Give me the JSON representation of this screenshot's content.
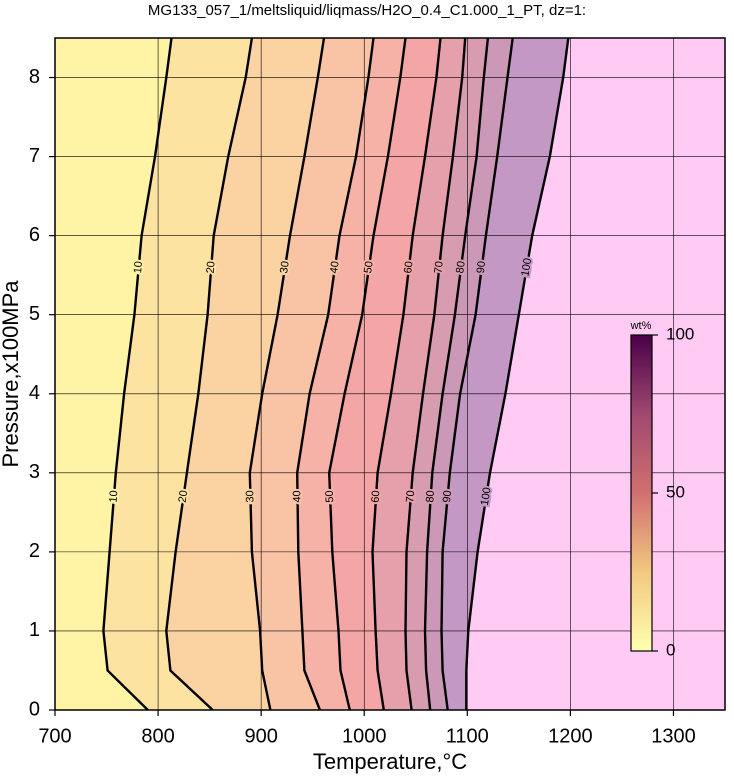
{
  "chart_data": {
    "type": "contour",
    "title": "MG133_057_1/meltsliquid/liqmass/H2O_0.4_C1.000_1_PT, dz=1:",
    "x_label": "Temperature,°C",
    "y_label": "Pressure,x100MPa",
    "xlim": [
      700,
      1350
    ],
    "ylim": [
      0,
      8.5
    ],
    "xticks": [
      700,
      800,
      900,
      1000,
      1100,
      1200,
      1300
    ],
    "yticks": [
      0,
      1,
      2,
      3,
      4,
      5,
      6,
      7,
      8
    ],
    "grid": true,
    "pressures": [
      0,
      0.5,
      1,
      2,
      3,
      4,
      5,
      6,
      7,
      8,
      8.5
    ],
    "label_pressures": [
      2.7,
      5.6
    ],
    "contours": [
      {
        "level": 10,
        "temperatures": [
          790,
          751,
          747,
          753,
          759,
          767,
          777,
          784,
          797,
          808,
          813
        ]
      },
      {
        "level": 20,
        "temperatures": [
          853,
          812,
          808,
          817,
          828,
          839,
          848,
          854,
          868,
          885,
          891
        ]
      },
      {
        "level": 30,
        "temperatures": [
          909,
          901,
          899,
          891,
          889,
          901,
          916,
          928,
          942,
          955,
          961
        ]
      },
      {
        "level": 40,
        "temperatures": [
          957,
          942,
          940,
          936,
          935,
          947,
          965,
          976,
          992,
          1004,
          1009
        ]
      },
      {
        "level": 50,
        "temperatures": [
          986,
          977,
          975,
          969,
          966,
          981,
          998,
          1009,
          1023,
          1035,
          1040
        ]
      },
      {
        "level": 60,
        "temperatures": [
          1019,
          1013,
          1011,
          1008,
          1013,
          1026,
          1038,
          1047,
          1059,
          1070,
          1074
        ]
      },
      {
        "level": 70,
        "temperatures": [
          1046,
          1041,
          1040,
          1041,
          1047,
          1057,
          1068,
          1076,
          1086,
          1095,
          1098
        ]
      },
      {
        "level": 80,
        "temperatures": [
          1064,
          1060,
          1059,
          1061,
          1066,
          1076,
          1088,
          1098,
          1109,
          1116,
          1120
        ]
      },
      {
        "level": 90,
        "temperatures": [
          1081,
          1076,
          1075,
          1076,
          1083,
          1093,
          1108,
          1118,
          1129,
          1139,
          1144
        ]
      },
      {
        "level": 100,
        "temperatures": [
          1099,
          1099,
          1101,
          1110,
          1122,
          1137,
          1150,
          1163,
          1180,
          1193,
          1198
        ]
      }
    ],
    "band_colors": [
      "#fff3a6",
      "#fde3a2",
      "#fbd2a2",
      "#f9c3a6",
      "#f6b2a6",
      "#f4a6a6",
      "#e6a0ac",
      "#d89cb0",
      "#cc98b8",
      "#c498c4",
      "#ffcaf3"
    ],
    "colorbar": {
      "label": "wt%",
      "lim": [
        0,
        100
      ],
      "ticks": [
        0,
        50,
        100
      ],
      "stops": [
        {
          "value": 0,
          "color": "#ffffb0"
        },
        {
          "value": 25,
          "color": "#f2c880"
        },
        {
          "value": 50,
          "color": "#d07070"
        },
        {
          "value": 75,
          "color": "#a04870"
        },
        {
          "value": 100,
          "color": "#4a0048"
        }
      ]
    }
  }
}
